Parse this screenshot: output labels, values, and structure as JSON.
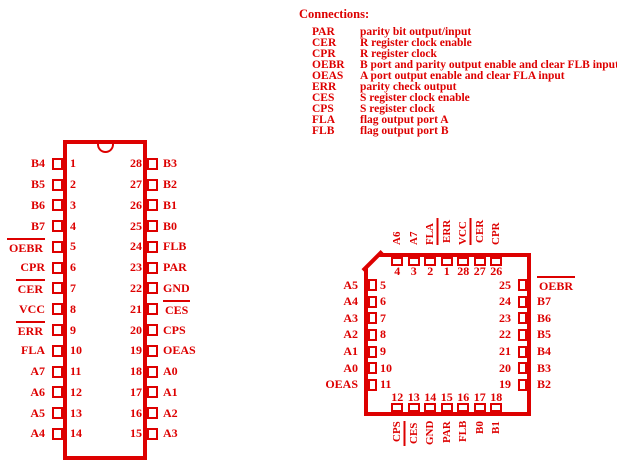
{
  "colors": {
    "red": "#dd0000",
    "background": "#ffffff"
  },
  "legend": {
    "title": "Connections:",
    "entries": [
      {
        "name": "PAR",
        "desc": "parity bit output/input"
      },
      {
        "name": "CER",
        "desc": "R register clock enable"
      },
      {
        "name": "CPR",
        "desc": "R register clock"
      },
      {
        "name": "OEBR",
        "desc": "B port and parity output enable and clear FLB input"
      },
      {
        "name": "OEAS",
        "desc": "A port output enable and clear FLA input"
      },
      {
        "name": "ERR",
        "desc": "parity check output"
      },
      {
        "name": "CES",
        "desc": "S register clock enable"
      },
      {
        "name": "CPS",
        "desc": "S register clock"
      },
      {
        "name": "FLA",
        "desc": "flag output port A"
      },
      {
        "name": "FLB",
        "desc": "flag output port B"
      }
    ]
  },
  "dip": {
    "left_pins": [
      {
        "num": "1",
        "label": "B4"
      },
      {
        "num": "2",
        "label": "B5"
      },
      {
        "num": "3",
        "label": "B6"
      },
      {
        "num": "4",
        "label": "B7"
      },
      {
        "num": "5",
        "label": "OEBR",
        "overline": true
      },
      {
        "num": "6",
        "label": "CPR"
      },
      {
        "num": "7",
        "label": "CER",
        "overline": true
      },
      {
        "num": "8",
        "label": "VCC"
      },
      {
        "num": "9",
        "label": "ERR",
        "overline": true
      },
      {
        "num": "10",
        "label": "FLA"
      },
      {
        "num": "11",
        "label": "A7"
      },
      {
        "num": "12",
        "label": "A6"
      },
      {
        "num": "13",
        "label": "A5"
      },
      {
        "num": "14",
        "label": "A4"
      }
    ],
    "right_pins": [
      {
        "num": "28",
        "label": "B3"
      },
      {
        "num": "27",
        "label": "B2"
      },
      {
        "num": "26",
        "label": "B1"
      },
      {
        "num": "25",
        "label": "B0"
      },
      {
        "num": "24",
        "label": "FLB"
      },
      {
        "num": "23",
        "label": "PAR"
      },
      {
        "num": "22",
        "label": "GND"
      },
      {
        "num": "21",
        "label": "CES",
        "overline": true
      },
      {
        "num": "20",
        "label": "CPS"
      },
      {
        "num": "19",
        "label": "OEAS"
      },
      {
        "num": "18",
        "label": "A0"
      },
      {
        "num": "17",
        "label": "A1"
      },
      {
        "num": "16",
        "label": "A2"
      },
      {
        "num": "15",
        "label": "A3"
      }
    ]
  },
  "plcc": {
    "top_pins": [
      {
        "num": "4",
        "label": "A6"
      },
      {
        "num": "3",
        "label": "A7"
      },
      {
        "num": "2",
        "label": "FLA"
      },
      {
        "num": "1",
        "label": "ERR",
        "overline": true
      },
      {
        "num": "28",
        "label": "VCC"
      },
      {
        "num": "27",
        "label": "CER",
        "overline": true
      },
      {
        "num": "26",
        "label": "CPR"
      }
    ],
    "left_pins": [
      {
        "num": "5",
        "label": "A5"
      },
      {
        "num": "6",
        "label": "A4"
      },
      {
        "num": "7",
        "label": "A3"
      },
      {
        "num": "8",
        "label": "A2"
      },
      {
        "num": "9",
        "label": "A1"
      },
      {
        "num": "10",
        "label": "A0"
      },
      {
        "num": "11",
        "label": "OEAS"
      }
    ],
    "right_pins": [
      {
        "num": "25",
        "label": "OEBR",
        "overline": true
      },
      {
        "num": "24",
        "label": "B7"
      },
      {
        "num": "23",
        "label": "B6"
      },
      {
        "num": "22",
        "label": "B5"
      },
      {
        "num": "21",
        "label": "B4"
      },
      {
        "num": "20",
        "label": "B3"
      },
      {
        "num": "19",
        "label": "B2"
      }
    ],
    "bottom_pins": [
      {
        "num": "12",
        "label": "CPS"
      },
      {
        "num": "13",
        "label": "CES",
        "overline": true
      },
      {
        "num": "14",
        "label": "GND"
      },
      {
        "num": "15",
        "label": "PAR"
      },
      {
        "num": "16",
        "label": "FLB"
      },
      {
        "num": "17",
        "label": "B0"
      },
      {
        "num": "18",
        "label": "B1"
      }
    ]
  }
}
